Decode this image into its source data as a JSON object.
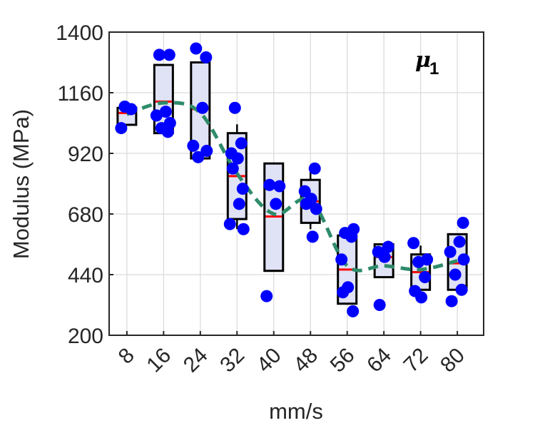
{
  "chart_data": {
    "type": "box",
    "xlabel": "mm/s",
    "ylabel": "Modulus (MPa)",
    "annotation": {
      "symbol": "μ",
      "subscript": "1"
    },
    "categories": [
      "8",
      "16",
      "24",
      "32",
      "40",
      "48",
      "56",
      "64",
      "72",
      "80"
    ],
    "ylim": [
      200,
      1400
    ],
    "yticks": [
      200,
      440,
      680,
      920,
      1160,
      1400
    ],
    "grid": true,
    "colors": {
      "box_fill": "#e0e2f5",
      "box_edge": "#000000",
      "median": "#ff0000",
      "points": "#0000ff",
      "trend": "#2e8b6a"
    },
    "boxes": [
      {
        "q1": 1033,
        "median": 1080,
        "q3": 1100,
        "whisker_low": 1033,
        "whisker_high": 1100
      },
      {
        "q1": 1000,
        "median": 1125,
        "q3": 1270,
        "whisker_low": 1000,
        "whisker_high": 1270
      },
      {
        "q1": 900,
        "median": 1095,
        "q3": 1280,
        "whisker_low": 900,
        "whisker_high": 1280
      },
      {
        "q1": 660,
        "median": 830,
        "q3": 1000,
        "whisker_low": 620,
        "whisker_high": 1035
      },
      {
        "q1": 455,
        "median": 670,
        "q3": 880,
        "whisker_low": 455,
        "whisker_high": 880
      },
      {
        "q1": 645,
        "median": 730,
        "q3": 815,
        "whisker_low": 620,
        "whisker_high": 850
      },
      {
        "q1": 325,
        "median": 460,
        "q3": 595,
        "whisker_low": 325,
        "whisker_high": 595
      },
      {
        "q1": 430,
        "median": 510,
        "q3": 560,
        "whisker_low": 430,
        "whisker_high": 560
      },
      {
        "q1": 380,
        "median": 450,
        "q3": 520,
        "whisker_low": 380,
        "whisker_high": 555
      },
      {
        "q1": 380,
        "median": 485,
        "q3": 600,
        "whisker_low": 380,
        "whisker_high": 600
      }
    ],
    "points": [
      [
        1020,
        1095,
        1105
      ],
      [
        1005,
        1020,
        1040,
        1070,
        1085,
        1310,
        1310
      ],
      [
        905,
        930,
        950,
        1100,
        1300,
        1335
      ],
      [
        620,
        640,
        720,
        780,
        860,
        900,
        920,
        960,
        1100
      ],
      [
        355,
        720,
        790,
        795
      ],
      [
        590,
        700,
        720,
        740,
        770,
        860
      ],
      [
        295,
        370,
        390,
        500,
        590,
        605,
        620
      ],
      [
        320,
        510,
        530,
        550
      ],
      [
        350,
        375,
        430,
        490,
        500,
        565
      ],
      [
        335,
        380,
        440,
        500,
        530,
        570,
        645
      ]
    ],
    "trend": [
      1075,
      1120,
      1080,
      840,
      680,
      735,
      475,
      475,
      460,
      495
    ]
  }
}
